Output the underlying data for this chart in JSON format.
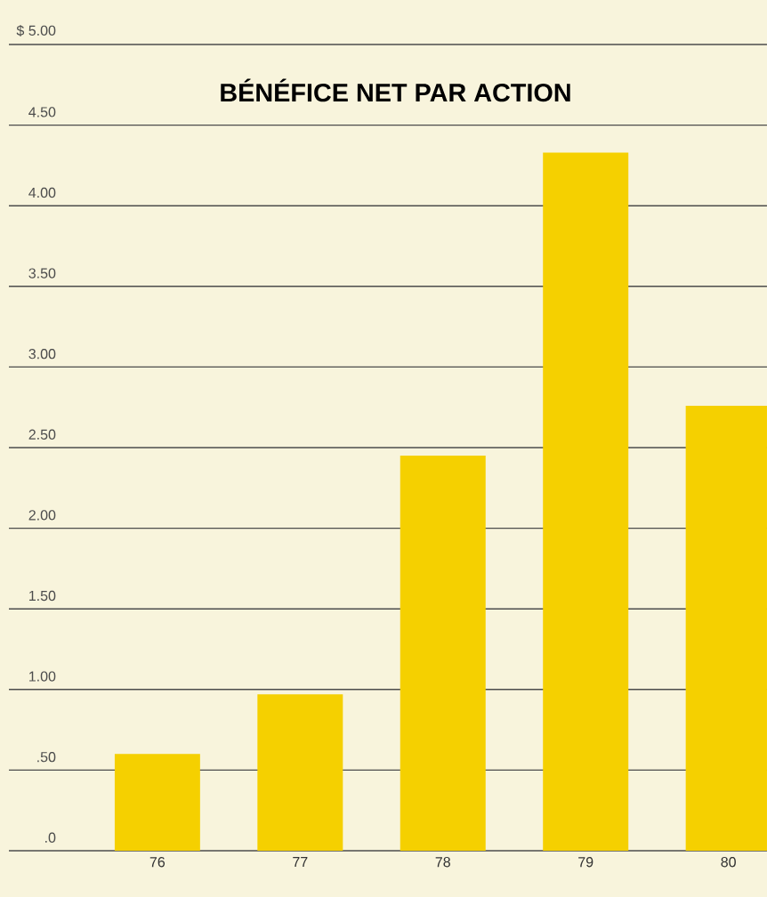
{
  "chart_data": {
    "type": "bar",
    "title": "BÉNÉFICE NET PAR ACTION",
    "categories": [
      "76",
      "77",
      "78",
      "79",
      "80"
    ],
    "values": [
      0.6,
      0.97,
      2.45,
      4.33,
      2.76
    ],
    "color": "#f5d000",
    "ylim": [
      0,
      5
    ],
    "yticks": [
      {
        "value": 0,
        "label": ".0"
      },
      {
        "value": 0.5,
        "label": ".50"
      },
      {
        "value": 1,
        "label": "1.00"
      },
      {
        "value": 1.5,
        "label": "1.50"
      },
      {
        "value": 2,
        "label": "2.00"
      },
      {
        "value": 2.5,
        "label": "2.50"
      },
      {
        "value": 3,
        "label": "3.00"
      },
      {
        "value": 3.5,
        "label": "3.50"
      },
      {
        "value": 4,
        "label": "4.00"
      },
      {
        "value": 4.5,
        "label": "4.50"
      },
      {
        "value": 5,
        "label": "$ 5.00"
      }
    ],
    "grid": "y"
  }
}
